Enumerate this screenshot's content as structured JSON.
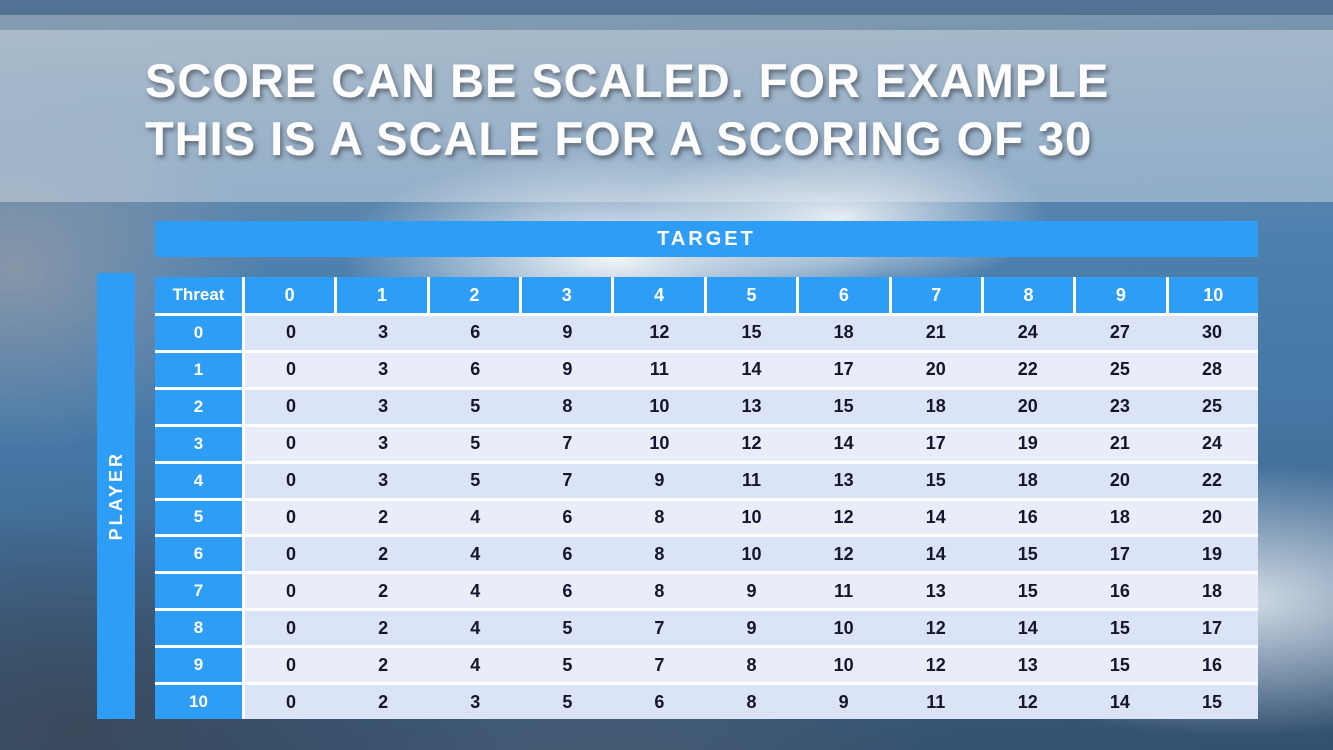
{
  "title": {
    "line1": "SCORE CAN BE SCALED. FOR EXAMPLE",
    "line2": "THIS IS A SCALE FOR A SCORING OF 30"
  },
  "labels": {
    "target": "TARGET",
    "player": "PLAYER",
    "corner": "Threat"
  },
  "colors": {
    "accent_blue": "#2e9df5",
    "row_even": "#dbe3f6",
    "row_odd": "#e9edfa",
    "cell_text": "#15152d",
    "top_strip": "#517293"
  },
  "chart_data": {
    "type": "table",
    "title": "SCORE CAN BE SCALED. FOR EXAMPLE THIS IS A SCALE FOR A SCORING OF 30",
    "column_axis_label": "TARGET",
    "row_axis_label": "PLAYER",
    "corner_label": "Threat",
    "columns": [
      "0",
      "1",
      "2",
      "3",
      "4",
      "5",
      "6",
      "7",
      "8",
      "9",
      "10"
    ],
    "rows": [
      "0",
      "1",
      "2",
      "3",
      "4",
      "5",
      "6",
      "7",
      "8",
      "9",
      "10"
    ],
    "values": [
      [
        0,
        3,
        6,
        9,
        12,
        15,
        18,
        21,
        24,
        27,
        30
      ],
      [
        0,
        3,
        6,
        9,
        11,
        14,
        17,
        20,
        22,
        25,
        28
      ],
      [
        0,
        3,
        5,
        8,
        10,
        13,
        15,
        18,
        20,
        23,
        25
      ],
      [
        0,
        3,
        5,
        7,
        10,
        12,
        14,
        17,
        19,
        21,
        24
      ],
      [
        0,
        3,
        5,
        7,
        9,
        11,
        13,
        15,
        18,
        20,
        22
      ],
      [
        0,
        2,
        4,
        6,
        8,
        10,
        12,
        14,
        16,
        18,
        20
      ],
      [
        0,
        2,
        4,
        6,
        8,
        10,
        12,
        14,
        15,
        17,
        19
      ],
      [
        0,
        2,
        4,
        6,
        8,
        9,
        11,
        13,
        15,
        16,
        18
      ],
      [
        0,
        2,
        4,
        5,
        7,
        9,
        10,
        12,
        14,
        15,
        17
      ],
      [
        0,
        2,
        4,
        5,
        7,
        8,
        10,
        12,
        13,
        15,
        16
      ],
      [
        0,
        2,
        3,
        5,
        6,
        8,
        9,
        11,
        12,
        14,
        15
      ]
    ]
  }
}
